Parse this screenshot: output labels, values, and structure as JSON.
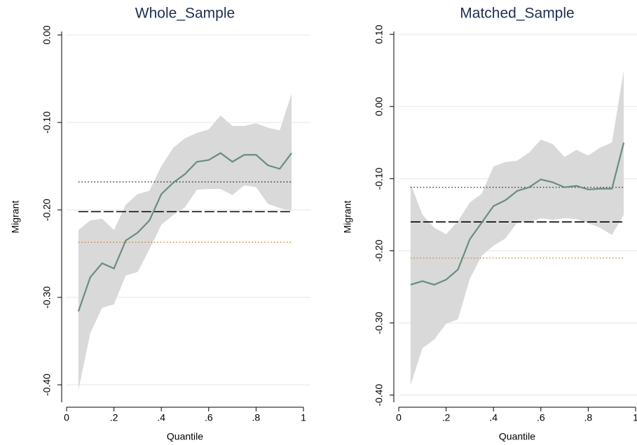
{
  "chart_data": [
    {
      "type": "line",
      "title": "Whole_Sample",
      "x_label": "Quantile",
      "y_label": "Migrant",
      "x": [
        0.05,
        0.1,
        0.15,
        0.2,
        0.25,
        0.3,
        0.35,
        0.4,
        0.45,
        0.5,
        0.55,
        0.6,
        0.65,
        0.7,
        0.75,
        0.8,
        0.85,
        0.9,
        0.95
      ],
      "values": [
        -0.316,
        -0.277,
        -0.261,
        -0.267,
        -0.235,
        -0.226,
        -0.212,
        -0.182,
        -0.169,
        -0.159,
        -0.145,
        -0.143,
        -0.135,
        -0.145,
        -0.137,
        -0.137,
        -0.149,
        -0.153,
        -0.135
      ],
      "band_upper": [
        -0.223,
        -0.212,
        -0.21,
        -0.223,
        -0.194,
        -0.182,
        -0.178,
        -0.15,
        -0.129,
        -0.118,
        -0.112,
        -0.108,
        -0.092,
        -0.104,
        -0.104,
        -0.101,
        -0.106,
        -0.109,
        -0.067
      ],
      "band_lower": [
        -0.406,
        -0.341,
        -0.312,
        -0.308,
        -0.275,
        -0.271,
        -0.245,
        -0.217,
        -0.206,
        -0.197,
        -0.177,
        -0.176,
        -0.176,
        -0.183,
        -0.172,
        -0.174,
        -0.193,
        -0.198,
        -0.201
      ],
      "color": "#6b8c80",
      "band_color": "#d9d9d9",
      "hlines": [
        {
          "value": -0.168,
          "style": "dot",
          "color": "#333333"
        },
        {
          "value": -0.202,
          "style": "dash",
          "color": "#000000"
        },
        {
          "value": -0.237,
          "style": "dot",
          "color": "#d9822b"
        }
      ],
      "xlim": [
        0,
        1
      ],
      "xticks": [
        0,
        {
          "value": 0.2,
          "label": ".2"
        },
        {
          "value": 0.4,
          "label": ".4"
        },
        {
          "value": 0.6,
          "label": ".6"
        },
        {
          "value": 0.8,
          "label": ".8"
        },
        1
      ],
      "ylim": [
        -0.42,
        0.004
      ],
      "yticks": [
        {
          "value": 0,
          "label": "0.00"
        },
        {
          "value": -0.1,
          "label": "-0.10"
        },
        {
          "value": -0.2,
          "label": "-0.20"
        },
        {
          "value": -0.3,
          "label": "-0.30"
        },
        {
          "value": -0.4,
          "label": "-0.40"
        }
      ],
      "grid": true
    },
    {
      "type": "line",
      "title": "Matched_Sample",
      "x_label": "Quantile",
      "y_label": "Migrant",
      "x": [
        0.05,
        0.1,
        0.15,
        0.2,
        0.25,
        0.3,
        0.35,
        0.4,
        0.45,
        0.5,
        0.55,
        0.6,
        0.65,
        0.7,
        0.75,
        0.8,
        0.85,
        0.9,
        0.95
      ],
      "values": [
        -0.247,
        -0.242,
        -0.247,
        -0.24,
        -0.226,
        -0.184,
        -0.161,
        -0.138,
        -0.13,
        -0.117,
        -0.112,
        -0.101,
        -0.105,
        -0.112,
        -0.11,
        -0.115,
        -0.114,
        -0.114,
        -0.05
      ],
      "band_upper": [
        -0.107,
        -0.15,
        -0.168,
        -0.177,
        -0.159,
        -0.133,
        -0.121,
        -0.083,
        -0.077,
        -0.075,
        -0.064,
        -0.046,
        -0.052,
        -0.07,
        -0.06,
        -0.068,
        -0.057,
        -0.05,
        0.05
      ],
      "band_lower": [
        -0.386,
        -0.335,
        -0.323,
        -0.301,
        -0.295,
        -0.239,
        -0.207,
        -0.193,
        -0.183,
        -0.161,
        -0.16,
        -0.155,
        -0.157,
        -0.155,
        -0.156,
        -0.162,
        -0.168,
        -0.178,
        -0.15
      ],
      "color": "#6b8c80",
      "band_color": "#d9d9d9",
      "hlines": [
        {
          "value": -0.112,
          "style": "dot",
          "color": "#333333"
        },
        {
          "value": -0.16,
          "style": "dash",
          "color": "#000000"
        },
        {
          "value": -0.21,
          "style": "dot",
          "color": "#d9822b"
        }
      ],
      "xlim": [
        0,
        1
      ],
      "xticks": [
        0,
        {
          "value": 0.2,
          "label": ".2"
        },
        {
          "value": 0.4,
          "label": ".4"
        },
        {
          "value": 0.6,
          "label": ".6"
        },
        {
          "value": 0.8,
          "label": ".8"
        },
        1
      ],
      "ylim": [
        -0.41,
        0.104
      ],
      "yticks": [
        {
          "value": 0.1,
          "label": "0.10"
        },
        {
          "value": 0,
          "label": "0.00"
        },
        {
          "value": -0.1,
          "label": "-0.10"
        },
        {
          "value": -0.2,
          "label": "-0.20"
        },
        {
          "value": -0.3,
          "label": "-0.30"
        },
        {
          "value": -0.4,
          "label": "-0.40"
        }
      ],
      "grid": true
    }
  ]
}
